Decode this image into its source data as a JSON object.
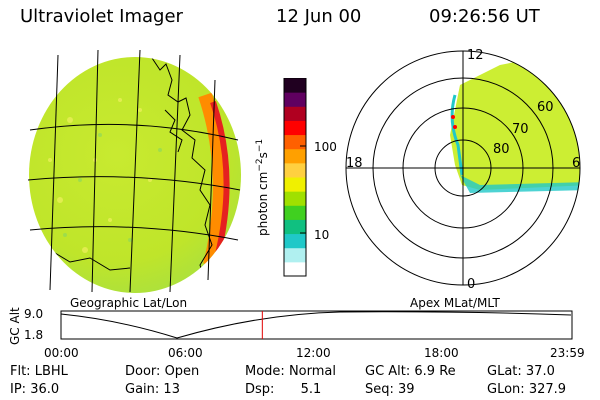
{
  "header": {
    "instrument": "Ultraviolet Imager",
    "date": "12 Jun 00",
    "time": "09:26:56 UT"
  },
  "colorbar": {
    "unit_label": "photon cm",
    "unit_sup1": "−2",
    "unit_mid": "s",
    "unit_sup2": "−1",
    "tick_100": "100",
    "tick_10": "10",
    "colors": [
      "#ffffff",
      "#b0f0f0",
      "#20c8c8",
      "#10c080",
      "#40d020",
      "#a0e000",
      "#f0f000",
      "#ffd040",
      "#ffa000",
      "#ff6000",
      "#ff0000",
      "#b00020",
      "#600060",
      "#200020"
    ]
  },
  "globe_panel": {
    "label": "Geographic Lat/Lon",
    "colors": {
      "fill": "#ccee33",
      "limb": "#e52020",
      "limb_orange": "#ff8c00"
    }
  },
  "polar_panel": {
    "label": "Apex MLat/MLT",
    "mlt_labels": {
      "top": "12",
      "left": "18",
      "right": "6",
      "bottom": "0"
    },
    "mlat_labels": [
      "60",
      "70",
      "80"
    ]
  },
  "altitude_plot": {
    "ylabel": "GC Alt",
    "yticks": [
      "9.0",
      "1.8"
    ],
    "xticks": [
      "00:00",
      "06:00",
      "12:00",
      "18:00",
      "23:59"
    ],
    "current_marker_time": "09:26:56",
    "marker_color": "#e00000"
  },
  "info": {
    "row1": [
      {
        "key": "Flt:",
        "value": "LBHL"
      },
      {
        "key": "Door:",
        "value": "Open"
      },
      {
        "key": "Mode:",
        "value": "Normal"
      },
      {
        "key": "GC Alt:",
        "value": "6.9 Re"
      },
      {
        "key": "GLat:",
        "value": "37.0"
      }
    ],
    "row2": [
      {
        "key": "IP:",
        "value": "36.0"
      },
      {
        "key": "Gain:",
        "value": "13"
      },
      {
        "key": "Dsp:",
        "value": "5.1"
      },
      {
        "key": "Seq:",
        "value": "39"
      },
      {
        "key": "GLon:",
        "value": "327.9"
      }
    ]
  }
}
